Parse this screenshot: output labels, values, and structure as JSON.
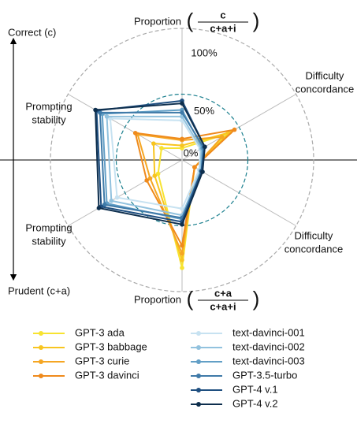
{
  "chart_data": {
    "type": "radar",
    "axis_labels": [
      {
        "text": "Proportion",
        "numerator": "c",
        "denominator": "c+a+i"
      },
      {
        "lines": [
          "Difficulty",
          "concordance"
        ]
      },
      {
        "lines": [
          "Difficulty",
          "concordance"
        ]
      },
      {
        "text": "Proportion",
        "numerator": "c+a",
        "denominator": "c+a+i"
      },
      {
        "lines": [
          "Prompting",
          "stability"
        ]
      },
      {
        "lines": [
          "Prompting",
          "stability"
        ]
      }
    ],
    "y_axis_top": "Correct (c)",
    "y_axis_bottom": "Prudent (c+a)",
    "rlim": [
      0,
      100
    ],
    "rticks": [
      {
        "value": 0,
        "label": "0%"
      },
      {
        "value": 50,
        "label": "50%"
      },
      {
        "value": 100,
        "label": "100%"
      }
    ],
    "series": [
      {
        "name": "GPT-3 ada",
        "color": "#f7e331",
        "values": [
          9,
          40,
          11,
          82,
          21,
          18
        ]
      },
      {
        "name": "GPT-3 babbage",
        "color": "#f8c520",
        "values": [
          11,
          42,
          11,
          76,
          24,
          25
        ]
      },
      {
        "name": "GPT-3 curie",
        "color": "#f5a623",
        "values": [
          15,
          35,
          11,
          71,
          28,
          39
        ]
      },
      {
        "name": "GPT-3 davinci",
        "color": "#ef8a1c",
        "values": [
          16,
          46,
          11,
          65,
          31,
          41
        ]
      },
      {
        "name": "text-davinci-001",
        "color": "#c7e2f1",
        "values": [
          30,
          16,
          15,
          37,
          57,
          63
        ]
      },
      {
        "name": "text-davinci-002",
        "color": "#92c2de",
        "values": [
          33,
          17,
          16,
          42,
          62,
          66
        ]
      },
      {
        "name": "text-davinci-003",
        "color": "#629fc6",
        "values": [
          38,
          18,
          17,
          45,
          66,
          70
        ]
      },
      {
        "name": "GPT-3.5-turbo",
        "color": "#3f7aa8",
        "values": [
          36,
          19,
          17,
          44,
          68,
          72
        ]
      },
      {
        "name": "GPT-4 v.1",
        "color": "#1f4f80",
        "values": [
          45,
          20,
          17,
          47,
          71,
          75
        ]
      },
      {
        "name": "GPT-4 v.2",
        "color": "#0d2e4d",
        "values": [
          43,
          20,
          18,
          49,
          73,
          76
        ]
      }
    ]
  }
}
